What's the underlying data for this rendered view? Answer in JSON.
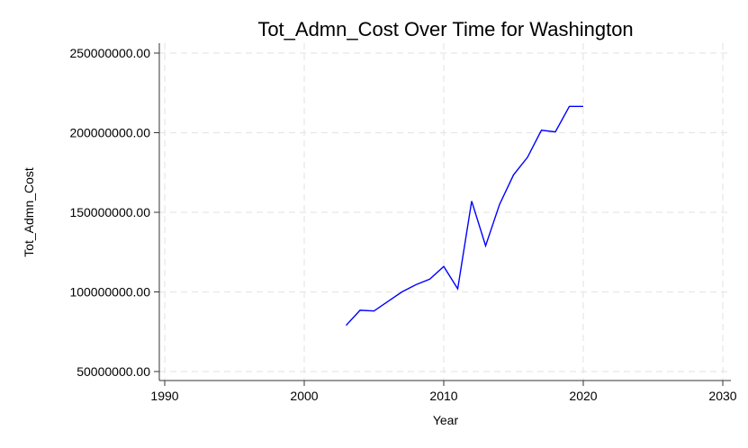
{
  "chart_data": {
    "type": "line",
    "title": "Tot_Admn_Cost Over Time for Washington",
    "xlabel": "Year",
    "ylabel": "Tot_Admn_Cost",
    "xlim": [
      1989,
      2031
    ],
    "ylim": [
      45000000,
      255000000
    ],
    "xticks": [
      1990,
      2000,
      2010,
      2020,
      2030
    ],
    "yticks": [
      50000000,
      100000000,
      150000000,
      200000000,
      250000000
    ],
    "ytick_labels": [
      "50000000.00",
      "100000000.00",
      "150000000.00",
      "200000000.00",
      "250000000.00"
    ],
    "grid": true,
    "series": [
      {
        "color": "#0000ff",
        "x": [
          2003,
          2004,
          2005,
          2006,
          2007,
          2008,
          2009,
          2010,
          2011,
          2012,
          2013,
          2014,
          2015,
          2016,
          2017,
          2018,
          2019,
          2020
        ],
        "y": [
          79000000,
          88500000,
          88000000,
          94000000,
          100000000,
          104500000,
          108000000,
          116000000,
          102000000,
          157000000,
          129000000,
          155000000,
          173500000,
          184500000,
          201500000,
          200500000,
          216500000,
          216500000
        ]
      }
    ]
  }
}
